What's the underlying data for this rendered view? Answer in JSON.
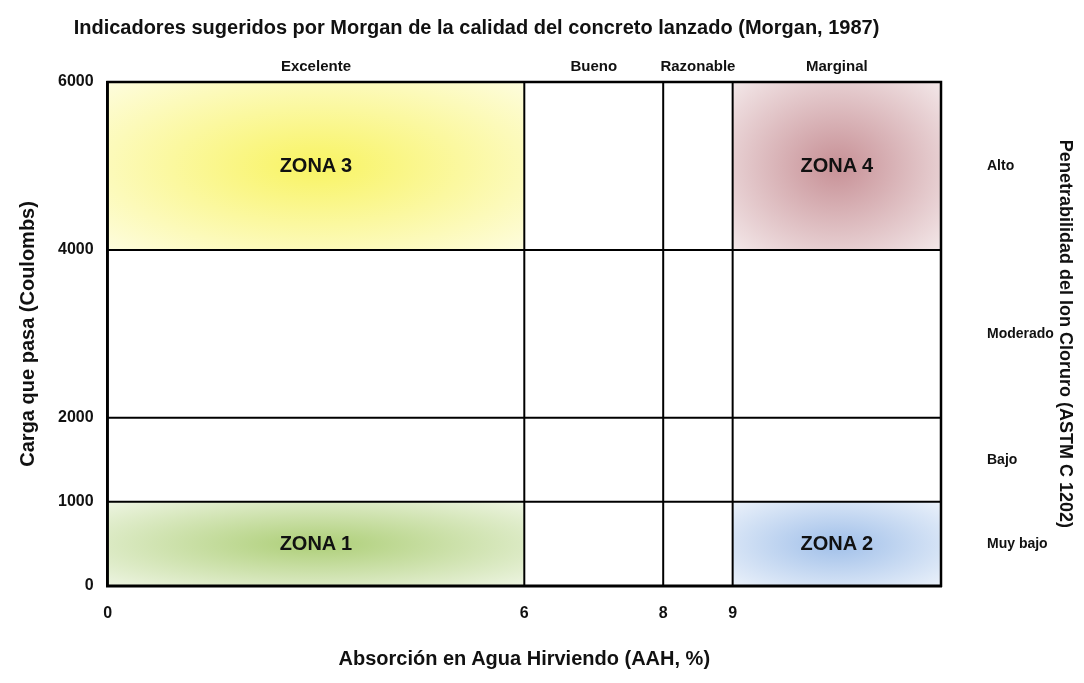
{
  "chart_data": {
    "type": "scatter",
    "title": "Indicadores sugeridos por Morgan de la calidad del concreto lanzado (Morgan, 1987)",
    "xlabel": "Absorción en Agua Hirviendo (AAH, %)",
    "ylabel": "Carga que pasa (Coulombs)",
    "xlim": [
      0,
      12
    ],
    "xticks": [
      0,
      6,
      8,
      9
    ],
    "ylim": [
      0,
      6000
    ],
    "yticks": [
      0,
      1000,
      2000,
      4000,
      6000
    ],
    "ref_lines": [
      {
        "axis": "x",
        "value": 6,
        "color": "#000000"
      },
      {
        "axis": "x",
        "value": 8,
        "color": "#000000"
      },
      {
        "axis": "x",
        "value": 9,
        "color": "#000000"
      },
      {
        "axis": "y",
        "value": 1000,
        "color": "#000000"
      },
      {
        "axis": "y",
        "value": 2000,
        "color": "#000000"
      },
      {
        "axis": "y",
        "value": 4000,
        "color": "#000000"
      }
    ],
    "annotations": [
      "Excelente",
      "Bueno",
      "Razonable",
      "Marginal",
      "Alto",
      "Moderado",
      "Bajo",
      "Muy bajo",
      "ZONA 3",
      "ZONA 4",
      "ZONA 1",
      "ZONA 2",
      "Penetrabilidad del Ion Cloruro (ASTM C 1202)"
    ]
  }
}
